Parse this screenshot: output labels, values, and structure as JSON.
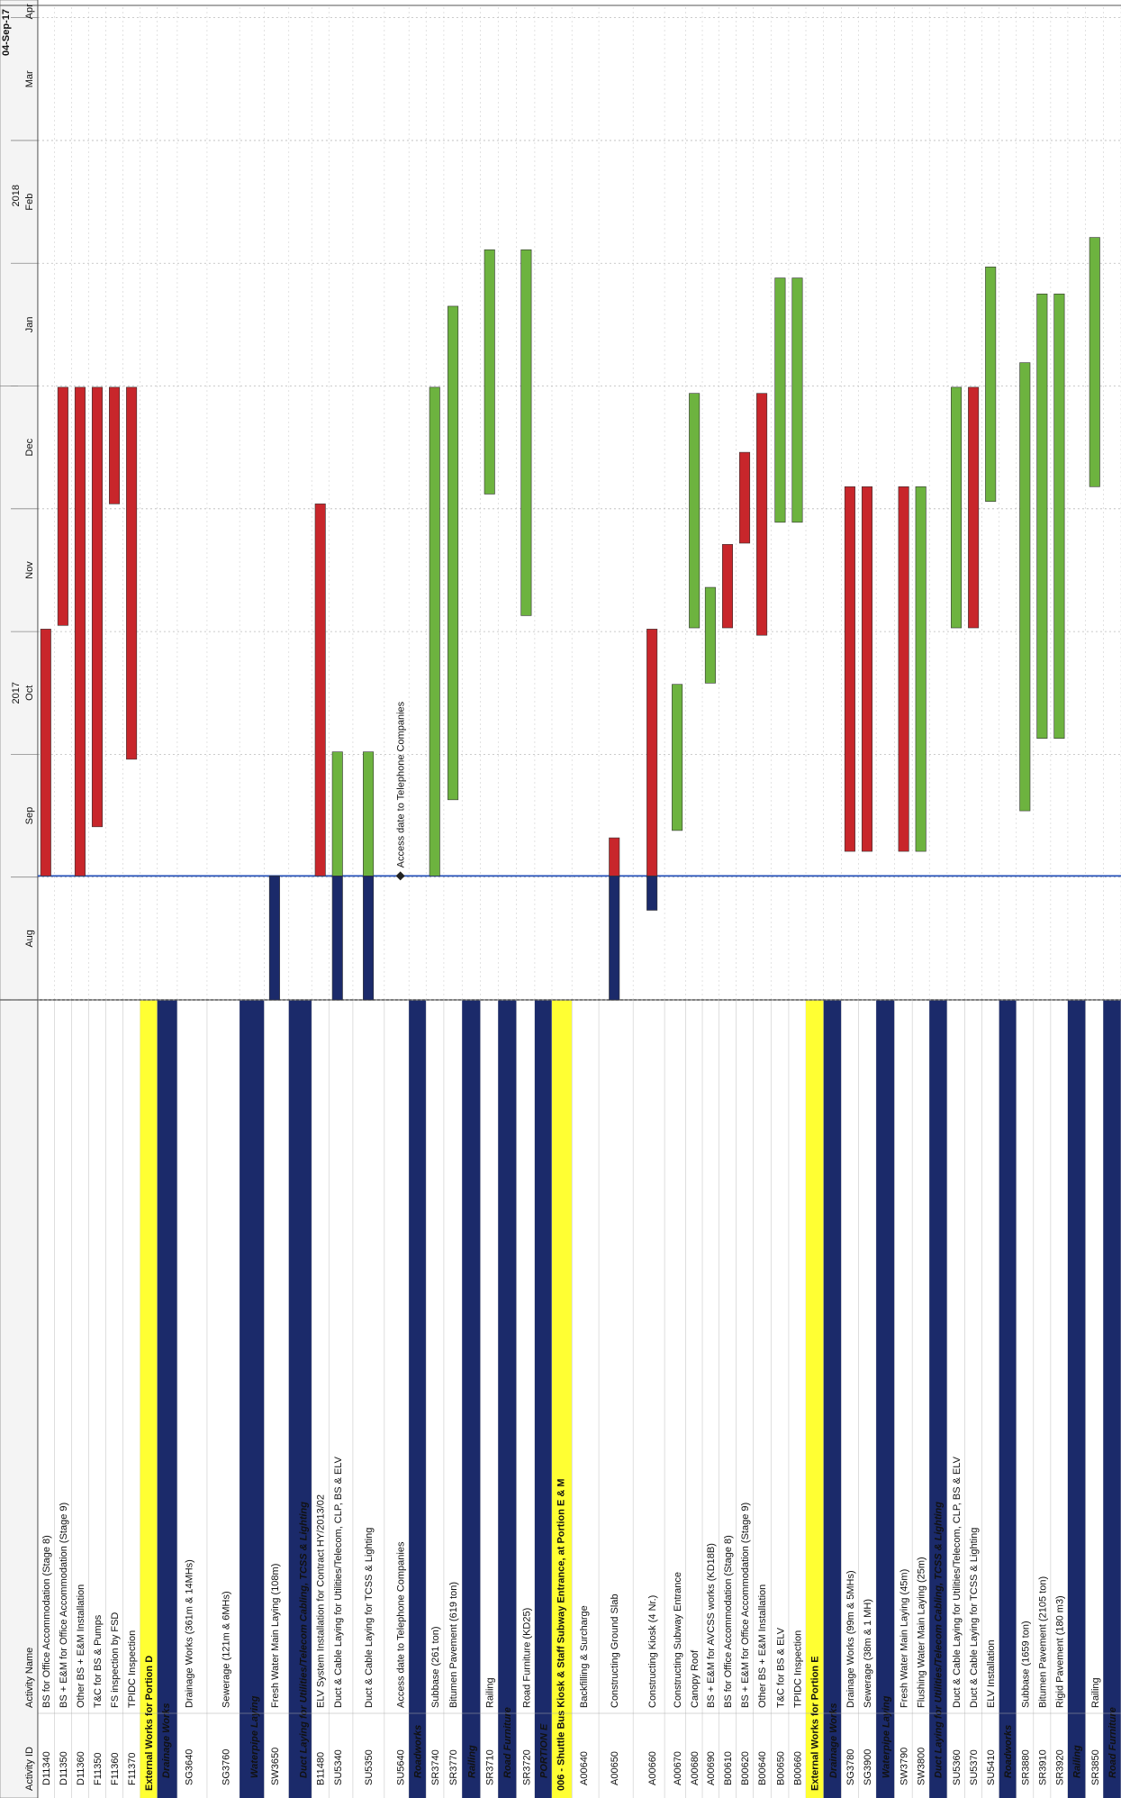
{
  "header": {
    "date": "04-Sep-17",
    "columns": [
      "Activity ID",
      "Activity Name"
    ]
  },
  "chart_data": {
    "type": "gantt",
    "xlim": [
      0,
      8.1
    ],
    "xticks": [
      {
        "value": 0,
        "label": "Aug"
      },
      {
        "value": 1,
        "label": "Sep"
      },
      {
        "value": 2,
        "label": "Oct"
      },
      {
        "value": 3,
        "label": "Nov"
      },
      {
        "value": 4,
        "label": "Dec"
      },
      {
        "value": 5,
        "label": "Jan"
      },
      {
        "value": 6,
        "label": "Feb"
      },
      {
        "value": 7,
        "label": "Mar"
      },
      {
        "value": 8,
        "label": "Apr"
      }
    ],
    "year_ticks": [
      {
        "value": 0,
        "label": "2017"
      },
      {
        "value": 5,
        "label": "2018"
      }
    ],
    "data_date": 1.01,
    "grid": true,
    "rows": [
      {
        "id": "D11340",
        "name": "BS for Office Accommodation (Stage 8)",
        "kind": "activity",
        "bars": [
          {
            "start": 1.01,
            "end": 3.02,
            "color": "#c8262b"
          }
        ]
      },
      {
        "id": "D11350",
        "name": "BS + E&M for Office Accommodation (Stage 9)",
        "kind": "activity",
        "bars": [
          {
            "start": 3.05,
            "end": 4.99,
            "color": "#c8262b"
          }
        ]
      },
      {
        "id": "D11360",
        "name": "Other BS + E&M Installation",
        "kind": "activity",
        "bars": [
          {
            "start": 1.01,
            "end": 4.99,
            "color": "#c8262b"
          }
        ]
      },
      {
        "id": "F11350",
        "name": "T&C for BS & Pumps",
        "kind": "activity",
        "bars": [
          {
            "start": 1.41,
            "end": 4.99,
            "color": "#c8262b"
          }
        ]
      },
      {
        "id": "F11360",
        "name": "FS inspection by FSD",
        "kind": "activity",
        "bars": [
          {
            "start": 4.04,
            "end": 4.99,
            "color": "#c8262b"
          }
        ]
      },
      {
        "id": "F11370",
        "name": "TPIDC Inspection",
        "kind": "activity",
        "bars": [
          {
            "start": 1.96,
            "end": 4.99,
            "color": "#c8262b"
          }
        ]
      },
      {
        "name": "External Works for Portion D",
        "kind": "section"
      },
      {
        "name": "Drainage Works",
        "kind": "group"
      },
      {
        "id": "SG3640",
        "name": "Drainage Works (361m & 14MHs)",
        "kind": "activity"
      },
      {
        "id": "SG3760",
        "name": "Sewerage (121m & 6MHs)",
        "kind": "activity"
      },
      {
        "name": "Waterpipe Laying",
        "kind": "group"
      },
      {
        "id": "SW3650",
        "name": "Fresh Water Main Laying (108m)",
        "kind": "activity",
        "bars": [
          {
            "start": 0,
            "end": 1.01,
            "color": "#1b2a6a"
          }
        ]
      },
      {
        "name": "Duct Laying for Utilities/Telecom Cabling, TCSS & Lighting",
        "kind": "group"
      },
      {
        "id": "B11480",
        "name": "ELV System Installation for Contract HY/2013/02",
        "kind": "activity",
        "bars": [
          {
            "start": 1.01,
            "end": 4.04,
            "color": "#c8262b"
          }
        ]
      },
      {
        "id": "SU5340",
        "name": "Duct & Cable Laying for Utilities/Telecom, CLP, BS & ELV",
        "kind": "activity",
        "bars": [
          {
            "start": 0,
            "end": 1.01,
            "color": "#1b2a6a"
          },
          {
            "start": 1.01,
            "end": 2.02,
            "color": "#6db33f"
          }
        ]
      },
      {
        "id": "SU5350",
        "name": "Duct & Cable Laying for TCSS & Lighting",
        "kind": "activity",
        "bars": [
          {
            "start": 0,
            "end": 1.01,
            "color": "#1b2a6a"
          },
          {
            "start": 1.01,
            "end": 2.02,
            "color": "#6db33f"
          }
        ]
      },
      {
        "id": "SU5640",
        "name": "Access date to Telephone Companies",
        "kind": "activity",
        "milestone": 1.01
      },
      {
        "name": "Roadworks",
        "kind": "group"
      },
      {
        "id": "SR3740",
        "name": "Subbase (261 ton)",
        "kind": "activity",
        "bars": [
          {
            "start": 1.01,
            "end": 4.99,
            "color": "#6db33f"
          }
        ]
      },
      {
        "id": "SR3770",
        "name": "Bitumen Pavement (619 ton)",
        "kind": "activity",
        "bars": [
          {
            "start": 1.63,
            "end": 5.65,
            "color": "#6db33f"
          }
        ]
      },
      {
        "name": "Railing",
        "kind": "group"
      },
      {
        "id": "SR3710",
        "name": "Railing",
        "kind": "activity",
        "bars": [
          {
            "start": 4.12,
            "end": 6.11,
            "color": "#6db33f"
          }
        ]
      },
      {
        "name": "Road Furniture",
        "kind": "group"
      },
      {
        "id": "SR3720",
        "name": "Road Furniture (KD25)",
        "kind": "activity",
        "bars": [
          {
            "start": 3.13,
            "end": 6.11,
            "color": "#6db33f"
          }
        ]
      },
      {
        "name": "PORTION E",
        "kind": "group"
      },
      {
        "name": "006 - Shuttle Bus Kiosk & Staff Subway Entrance, at Portion E & M",
        "kind": "section"
      },
      {
        "id": "A00640",
        "name": "Backfilling & Surcharge",
        "kind": "activity"
      },
      {
        "id": "A00650",
        "name": "Constructing Ground Slab",
        "kind": "activity",
        "bars": [
          {
            "start": 0,
            "end": 1.01,
            "color": "#1b2a6a"
          },
          {
            "start": 1.01,
            "end": 1.32,
            "color": "#c8262b"
          }
        ]
      },
      {
        "id": "A00660",
        "name": "Constructing Kiosk (4 Nr.)",
        "kind": "activity",
        "bars": [
          {
            "start": 0.73,
            "end": 1.01,
            "color": "#1b2a6a"
          },
          {
            "start": 1.01,
            "end": 3.02,
            "color": "#c8262b"
          }
        ]
      },
      {
        "id": "A00670",
        "name": "Constructing Subway Entrance",
        "kind": "activity",
        "bars": [
          {
            "start": 1.38,
            "end": 2.57,
            "color": "#6db33f"
          }
        ]
      },
      {
        "id": "A00680",
        "name": "Canopy Roof",
        "kind": "activity",
        "bars": [
          {
            "start": 3.03,
            "end": 4.94,
            "color": "#6db33f"
          }
        ]
      },
      {
        "id": "A00690",
        "name": "BS + E&M for AVCSS works (KD18B)",
        "kind": "activity",
        "bars": [
          {
            "start": 2.58,
            "end": 3.36,
            "color": "#6db33f"
          }
        ]
      },
      {
        "id": "B00610",
        "name": "BS for Office Accommodation (Stage 8)",
        "kind": "activity",
        "bars": [
          {
            "start": 3.03,
            "end": 3.71,
            "color": "#c8262b"
          }
        ]
      },
      {
        "id": "B00620",
        "name": "BS + E&M for Office Accommodation (Stage 9)",
        "kind": "activity",
        "bars": [
          {
            "start": 3.72,
            "end": 4.46,
            "color": "#c8262b"
          }
        ]
      },
      {
        "id": "B00640",
        "name": "Other BS + E&M Installation",
        "kind": "activity",
        "bars": [
          {
            "start": 2.97,
            "end": 4.94,
            "color": "#c8262b"
          }
        ]
      },
      {
        "id": "B00650",
        "name": "T&C for BS & ELV",
        "kind": "activity",
        "bars": [
          {
            "start": 3.89,
            "end": 5.88,
            "color": "#6db33f"
          }
        ]
      },
      {
        "id": "B00660",
        "name": "TPIDC Inspection",
        "kind": "activity",
        "bars": [
          {
            "start": 3.89,
            "end": 5.88,
            "color": "#6db33f"
          }
        ]
      },
      {
        "name": "External Works for Portion E",
        "kind": "section"
      },
      {
        "name": "Drainage Works",
        "kind": "group"
      },
      {
        "id": "SG3780",
        "name": "Drainage Works (99m & 5MHs)",
        "kind": "activity",
        "bars": [
          {
            "start": 1.21,
            "end": 4.18,
            "color": "#c8262b"
          }
        ]
      },
      {
        "id": "SG3900",
        "name": "Sewerage (38m & 1 MH)",
        "kind": "activity",
        "bars": [
          {
            "start": 1.21,
            "end": 4.18,
            "color": "#c8262b"
          }
        ]
      },
      {
        "name": "Waterpipe Laying",
        "kind": "group"
      },
      {
        "id": "SW3790",
        "name": "Fresh Water Main Laying (45m)",
        "kind": "activity",
        "bars": [
          {
            "start": 1.21,
            "end": 4.18,
            "color": "#c8262b"
          }
        ]
      },
      {
        "id": "SW3800",
        "name": "Flushing Water Main Laying (25m)",
        "kind": "activity",
        "bars": [
          {
            "start": 1.21,
            "end": 4.18,
            "color": "#6db33f"
          }
        ]
      },
      {
        "name": "Duct Laying for Utilities/Telecom Cabling, TCSS & Lighting",
        "kind": "group"
      },
      {
        "id": "SU5360",
        "name": "Duct & Cable Laying for Utilities/Telecom, CLP, BS & ELV",
        "kind": "activity",
        "bars": [
          {
            "start": 3.03,
            "end": 4.99,
            "color": "#6db33f"
          }
        ]
      },
      {
        "id": "SU5370",
        "name": "Duct & Cable Laying for TCSS & Lighting",
        "kind": "activity",
        "bars": [
          {
            "start": 3.03,
            "end": 4.99,
            "color": "#c8262b"
          }
        ]
      },
      {
        "id": "SU5410",
        "name": "ELV Installation",
        "kind": "activity",
        "bars": [
          {
            "start": 4.06,
            "end": 5.97,
            "color": "#6db33f"
          }
        ]
      },
      {
        "name": "Roadworks",
        "kind": "group"
      },
      {
        "id": "SR3880",
        "name": "Subbase (1659 ton)",
        "kind": "activity",
        "bars": [
          {
            "start": 1.54,
            "end": 5.19,
            "color": "#6db33f"
          }
        ]
      },
      {
        "id": "SR3910",
        "name": "Bitumen Pavement (2105 ton)",
        "kind": "activity",
        "bars": [
          {
            "start": 2.13,
            "end": 5.75,
            "color": "#6db33f"
          }
        ]
      },
      {
        "id": "SR3920",
        "name": "Rigid Pavement (180 m3)",
        "kind": "activity",
        "bars": [
          {
            "start": 2.13,
            "end": 5.75,
            "color": "#6db33f"
          }
        ]
      },
      {
        "name": "Railing",
        "kind": "group"
      },
      {
        "id": "SR3850",
        "name": "Railing",
        "kind": "activity",
        "bars": [
          {
            "start": 4.18,
            "end": 6.21,
            "color": "#6db33f"
          }
        ]
      },
      {
        "name": "Road Furniture",
        "kind": "group"
      }
    ]
  }
}
